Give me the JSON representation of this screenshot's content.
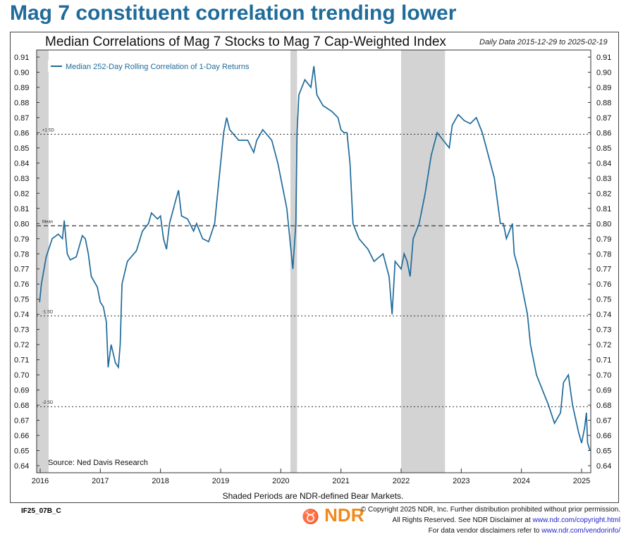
{
  "headline": "Mag 7 constituent correlation trending lower",
  "chart_data": {
    "type": "line",
    "title": "Median Correlations of Mag 7 Stocks to Mag 7 Cap-Weighted Index",
    "subtitle": "Daily Data 2015-12-29 to 2025-02-19",
    "xlabel": "",
    "ylabel": "",
    "xlim": [
      2015.93,
      2025.15
    ],
    "ylim": [
      0.64,
      0.91
    ],
    "x_ticks": [
      "2016",
      "2017",
      "2018",
      "2019",
      "2020",
      "2021",
      "2022",
      "2023",
      "2024",
      "2025"
    ],
    "y_ticks": [
      "0.91",
      "0.90",
      "0.89",
      "0.88",
      "0.87",
      "0.86",
      "0.85",
      "0.84",
      "0.83",
      "0.82",
      "0.81",
      "0.80",
      "0.79",
      "0.78",
      "0.77",
      "0.76",
      "0.75",
      "0.74",
      "0.73",
      "0.72",
      "0.71",
      "0.70",
      "0.69",
      "0.68",
      "0.67",
      "0.66",
      "0.65",
      "0.64"
    ],
    "legend": "Median 252-Day Rolling Correlation of 1-Day Returns",
    "legend_position": "top-left",
    "series_color": "#1f6b9a",
    "reference_lines": [
      {
        "label": "+1 SD",
        "value": 0.859
      },
      {
        "label": "Mean",
        "value": 0.7985
      },
      {
        "label": "-1 SD",
        "value": 0.739
      },
      {
        "label": "-2 SD",
        "value": 0.679
      }
    ],
    "bear_markets": [
      [
        2015.93,
        2016.14
      ],
      [
        2020.16,
        2020.27
      ],
      [
        2022.0,
        2022.73
      ]
    ],
    "source": "Source: Ned Davis Research",
    "series": [
      {
        "name": "Median 252-Day Rolling Correlation of 1-Day Returns",
        "x": [
          2015.99,
          2016.02,
          2016.1,
          2016.2,
          2016.3,
          2016.37,
          2016.4,
          2016.45,
          2016.5,
          2016.6,
          2016.7,
          2016.75,
          2016.8,
          2016.85,
          2016.95,
          2017.0,
          2017.05,
          2017.1,
          2017.13,
          2017.18,
          2017.25,
          2017.3,
          2017.33,
          2017.36,
          2017.45,
          2017.6,
          2017.7,
          2017.8,
          2017.85,
          2017.95,
          2018.0,
          2018.05,
          2018.1,
          2018.15,
          2018.25,
          2018.3,
          2018.35,
          2018.45,
          2018.55,
          2018.6,
          2018.7,
          2018.8,
          2018.9,
          2019.0,
          2019.05,
          2019.1,
          2019.15,
          2019.3,
          2019.45,
          2019.55,
          2019.6,
          2019.7,
          2019.85,
          2019.95,
          2020.0,
          2020.1,
          2020.15,
          2020.2,
          2020.25,
          2020.27,
          2020.3,
          2020.4,
          2020.5,
          2020.55,
          2020.6,
          2020.7,
          2020.85,
          2020.95,
          2021.0,
          2021.05,
          2021.1,
          2021.15,
          2021.2,
          2021.3,
          2021.45,
          2021.55,
          2021.7,
          2021.8,
          2021.85,
          2021.9,
          2022.0,
          2022.05,
          2022.1,
          2022.15,
          2022.2,
          2022.3,
          2022.4,
          2022.5,
          2022.6,
          2022.7,
          2022.8,
          2022.85,
          2022.95,
          2023.05,
          2023.15,
          2023.25,
          2023.35,
          2023.45,
          2023.55,
          2023.65,
          2023.7,
          2023.75,
          2023.85,
          2023.88,
          2023.95,
          2024.0,
          2024.1,
          2024.15,
          2024.25,
          2024.35,
          2024.45,
          2024.55,
          2024.65,
          2024.7,
          2024.78,
          2024.85,
          2024.95,
          2025.0,
          2025.05,
          2025.08,
          2025.1,
          2025.14
        ],
        "y": [
          0.748,
          0.76,
          0.778,
          0.79,
          0.793,
          0.79,
          0.802,
          0.78,
          0.776,
          0.778,
          0.792,
          0.79,
          0.78,
          0.765,
          0.758,
          0.748,
          0.745,
          0.735,
          0.705,
          0.72,
          0.708,
          0.705,
          0.72,
          0.76,
          0.775,
          0.782,
          0.795,
          0.8,
          0.807,
          0.803,
          0.805,
          0.79,
          0.783,
          0.8,
          0.815,
          0.822,
          0.805,
          0.803,
          0.795,
          0.8,
          0.79,
          0.788,
          0.8,
          0.84,
          0.86,
          0.87,
          0.862,
          0.855,
          0.855,
          0.847,
          0.855,
          0.862,
          0.855,
          0.84,
          0.83,
          0.81,
          0.79,
          0.77,
          0.8,
          0.86,
          0.885,
          0.895,
          0.89,
          0.904,
          0.885,
          0.878,
          0.874,
          0.87,
          0.862,
          0.86,
          0.86,
          0.84,
          0.8,
          0.79,
          0.783,
          0.775,
          0.78,
          0.765,
          0.74,
          0.775,
          0.77,
          0.78,
          0.775,
          0.765,
          0.79,
          0.8,
          0.82,
          0.845,
          0.86,
          0.855,
          0.85,
          0.865,
          0.872,
          0.868,
          0.866,
          0.87,
          0.86,
          0.845,
          0.83,
          0.8,
          0.8,
          0.79,
          0.8,
          0.78,
          0.77,
          0.76,
          0.74,
          0.72,
          0.7,
          0.69,
          0.68,
          0.668,
          0.675,
          0.695,
          0.7,
          0.68,
          0.662,
          0.655,
          0.665,
          0.675,
          0.655,
          0.65
        ]
      }
    ]
  },
  "footer": {
    "shaded_note": "Shaded Periods are NDR-defined Bear Markets.",
    "code": "IF25_07B_C",
    "logo": "NDR",
    "copyright_line1": "© Copyright 2025 NDR, Inc. Further distribution prohibited without prior permission.",
    "copyright_line2": "All Rights Reserved. See NDR Disclaimer at ",
    "copyright_link1": "www.ndr.com/copyright.html",
    "copyright_line3": "For data vendor disclaimers refer to ",
    "copyright_link2": "www.ndr.com/vendorinfo/"
  }
}
